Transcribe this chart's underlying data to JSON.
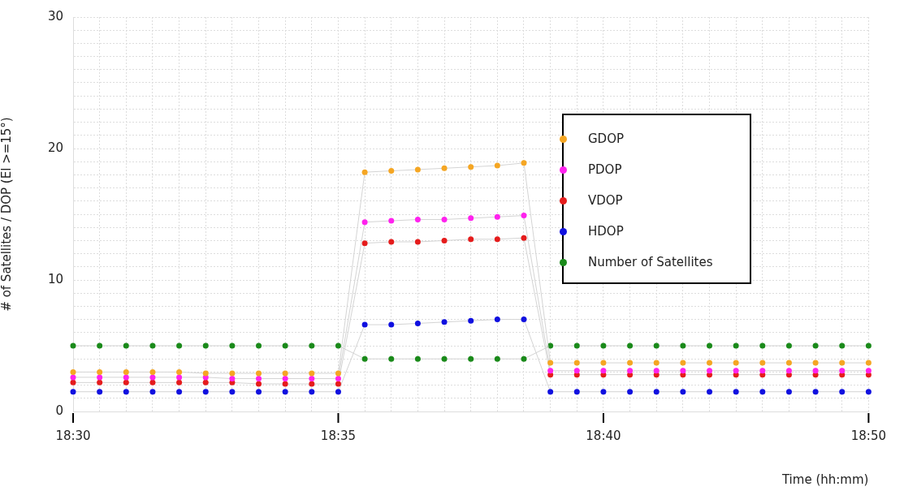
{
  "chart_data": {
    "type": "line",
    "xlabel": "Time (hh:mm)",
    "ylabel": "# of Satellites / DOP (El >=15°)",
    "categories": [
      "18:30",
      null,
      null,
      null,
      null,
      null,
      null,
      null,
      null,
      null,
      "18:35",
      null,
      null,
      null,
      null,
      null,
      null,
      null,
      null,
      null,
      "18:40",
      null,
      null,
      null,
      null,
      null,
      null,
      null,
      null,
      null,
      "18:50"
    ],
    "ylim": [
      0,
      30
    ],
    "yticks": [
      0,
      {
        "value": 1,
        "label": null
      },
      {
        "value": 2,
        "label": null
      },
      {
        "value": 3,
        "label": null
      },
      {
        "value": 4,
        "label": null
      },
      {
        "value": 5,
        "label": null
      },
      {
        "value": 6,
        "label": null
      },
      {
        "value": 7,
        "label": null
      },
      {
        "value": 8,
        "label": null
      },
      {
        "value": 9,
        "label": null
      },
      10,
      {
        "value": 11,
        "label": null
      },
      {
        "value": 12,
        "label": null
      },
      {
        "value": 13,
        "label": null
      },
      {
        "value": 14,
        "label": null
      },
      {
        "value": 15,
        "label": null
      },
      {
        "value": 16,
        "label": null
      },
      {
        "value": 17,
        "label": null
      },
      {
        "value": 18,
        "label": null
      },
      {
        "value": 19,
        "label": null
      },
      20,
      {
        "value": 21,
        "label": null
      },
      {
        "value": 22,
        "label": null
      },
      {
        "value": 23,
        "label": null
      },
      {
        "value": 24,
        "label": null
      },
      {
        "value": 25,
        "label": null
      },
      {
        "value": 26,
        "label": null
      },
      {
        "value": 27,
        "label": null
      },
      {
        "value": 28,
        "label": null
      },
      {
        "value": 29,
        "label": null
      },
      30
    ],
    "grid": true,
    "legend": "right",
    "marker": "circle",
    "series": [
      {
        "name": "GDOP",
        "color": "#f5a623",
        "values": [
          3.0,
          3.0,
          3.0,
          3.0,
          3.0,
          2.9,
          2.9,
          2.9,
          2.9,
          2.9,
          2.9,
          18.2,
          18.3,
          18.4,
          18.5,
          18.6,
          18.7,
          18.9,
          3.7,
          3.7,
          3.7,
          3.7,
          3.7,
          3.7,
          3.7,
          3.7,
          3.7,
          3.7,
          3.7,
          3.7,
          3.7
        ]
      },
      {
        "name": "PDOP",
        "color": "#ff22ee",
        "values": [
          2.6,
          2.6,
          2.6,
          2.6,
          2.6,
          2.6,
          2.5,
          2.5,
          2.5,
          2.5,
          2.5,
          14.4,
          14.5,
          14.6,
          14.6,
          14.7,
          14.8,
          14.9,
          3.1,
          3.1,
          3.1,
          3.1,
          3.1,
          3.1,
          3.1,
          3.1,
          3.1,
          3.1,
          3.1,
          3.1,
          3.1
        ]
      },
      {
        "name": "VDOP",
        "color": "#e51c1c",
        "values": [
          2.2,
          2.2,
          2.2,
          2.2,
          2.2,
          2.2,
          2.2,
          2.1,
          2.1,
          2.1,
          2.1,
          12.8,
          12.9,
          12.9,
          13.0,
          13.1,
          13.1,
          13.2,
          2.8,
          2.8,
          2.8,
          2.8,
          2.8,
          2.8,
          2.8,
          2.8,
          2.8,
          2.8,
          2.8,
          2.8,
          2.8
        ]
      },
      {
        "name": "HDOP",
        "color": "#1010e0",
        "values": [
          1.5,
          1.5,
          1.5,
          1.5,
          1.5,
          1.5,
          1.5,
          1.5,
          1.5,
          1.5,
          1.5,
          6.6,
          6.6,
          6.7,
          6.8,
          6.9,
          7.0,
          7.0,
          1.5,
          1.5,
          1.5,
          1.5,
          1.5,
          1.5,
          1.5,
          1.5,
          1.5,
          1.5,
          1.5,
          1.5,
          1.5
        ]
      },
      {
        "name": "Number of Satellites",
        "color": "#1a8a1a",
        "values": [
          5,
          5,
          5,
          5,
          5,
          5,
          5,
          5,
          5,
          5,
          5,
          4,
          4,
          4,
          4,
          4,
          4,
          4,
          5,
          5,
          5,
          5,
          5,
          5,
          5,
          5,
          5,
          5,
          5,
          5,
          5
        ]
      }
    ]
  }
}
